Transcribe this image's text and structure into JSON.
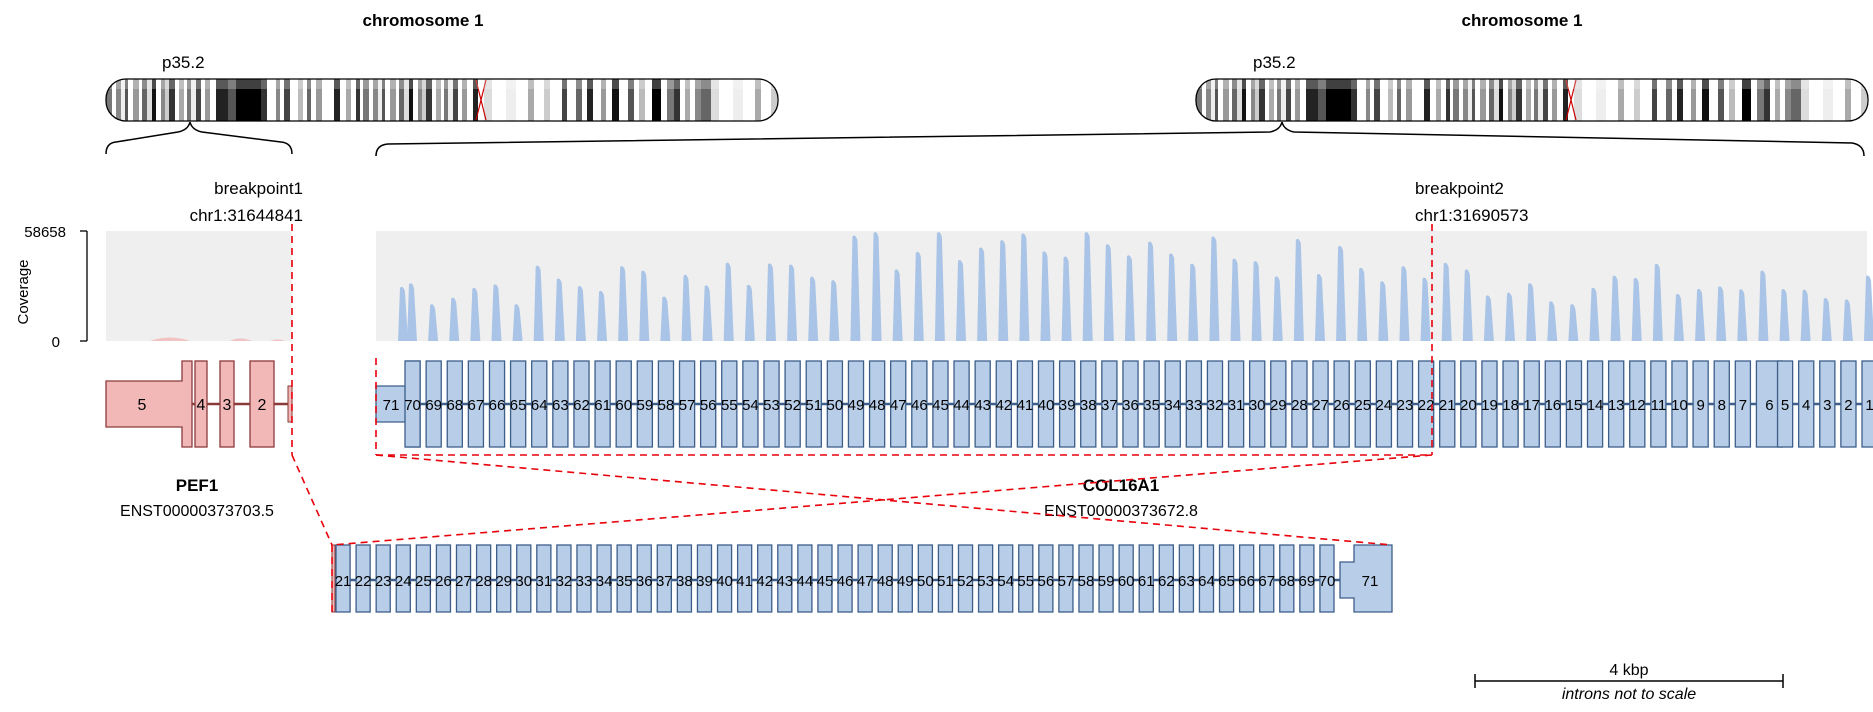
{
  "left_panel": {
    "chromosome_title": "chromosome 1",
    "band_label": "p35.2",
    "breakpoint_label": "breakpoint1",
    "breakpoint_coord": "chr1:31644841",
    "gene_name": "PEF1",
    "transcript": "ENST00000373703.5",
    "exons": [
      "5",
      "4",
      "3",
      "2"
    ]
  },
  "right_panel": {
    "chromosome_title": "chromosome 1",
    "band_label": "p35.2",
    "breakpoint_label": "breakpoint2",
    "breakpoint_coord": "chr1:31690573",
    "gene_name": "COL16A1",
    "transcript": "ENST00000373672.8"
  },
  "coverage": {
    "axis_title": "Coverage",
    "max_label": "58658",
    "min_label": "0",
    "max_value": 58658
  },
  "col16a1_exon_labels": [
    "71",
    "70",
    "69",
    "68",
    "67",
    "66",
    "65",
    "64",
    "63",
    "62",
    "61",
    "60",
    "59",
    "58",
    "57",
    "56",
    "55",
    "54",
    "53",
    "52",
    "51",
    "50",
    "49",
    "48",
    "47",
    "46",
    "45",
    "44",
    "43",
    "42",
    "41",
    "40",
    "39",
    "38",
    "37",
    "36",
    "35",
    "34",
    "33",
    "32",
    "31",
    "30",
    "29",
    "28",
    "27",
    "26",
    "25",
    "24",
    "23",
    "22",
    "21",
    "20",
    "19",
    "18",
    "17",
    "16",
    "15",
    "14",
    "13",
    "12",
    "11",
    "10",
    "9",
    "8",
    "7",
    "6",
    "5",
    "4",
    "3",
    "2",
    "1"
  ],
  "fusion_exon_labels": [
    "21",
    "22",
    "23",
    "24",
    "25",
    "26",
    "27",
    "28",
    "29",
    "30",
    "31",
    "32",
    "33",
    "34",
    "35",
    "36",
    "37",
    "38",
    "39",
    "40",
    "41",
    "42",
    "43",
    "44",
    "45",
    "46",
    "47",
    "48",
    "49",
    "50",
    "51",
    "52",
    "53",
    "54",
    "55",
    "56",
    "57",
    "58",
    "59",
    "60",
    "61",
    "62",
    "63",
    "64",
    "65",
    "66",
    "67",
    "68",
    "69",
    "70",
    "71"
  ],
  "scale_bar": {
    "label": "4 kbp",
    "note": "introns not to scale"
  },
  "colors": {
    "pef1_fill": "#f2b8b8",
    "pef1_stroke": "#8b3a3a",
    "col16a1_fill": "#b7cde8",
    "col16a1_stroke": "#3d5f8a",
    "coverage_fill": "#a9c4e6",
    "coverage_bg": "#efefef",
    "breakpoint": "#e8000b"
  }
}
